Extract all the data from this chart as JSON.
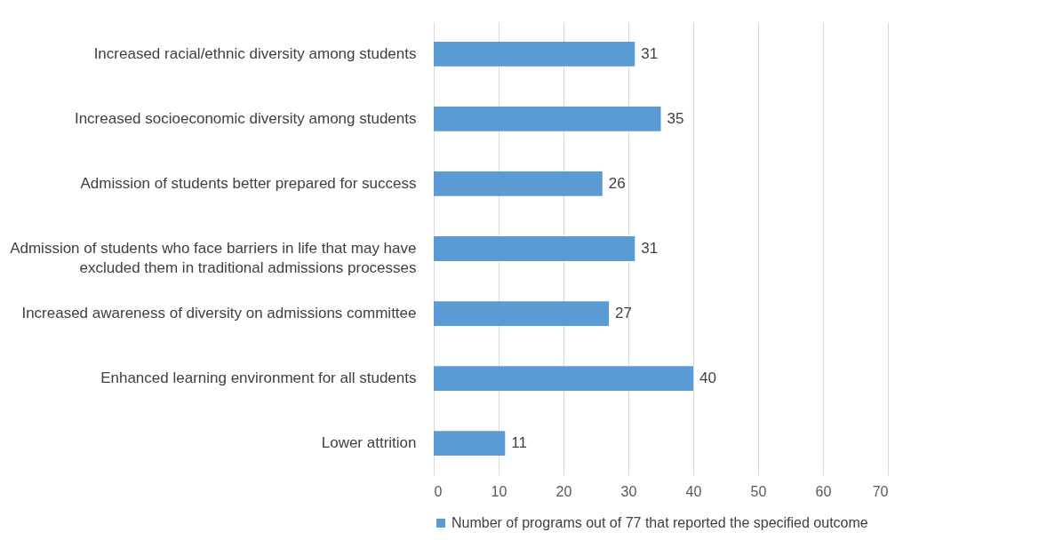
{
  "chart_data": {
    "type": "bar",
    "orientation": "horizontal",
    "categories": [
      "Increased racial/ethnic diversity among students",
      "Increased socioeconomic diversity among students",
      "Admission of students better prepared for success",
      "Admission of students who face barriers in life that may have excluded them in traditional admissions processes",
      "Increased awareness of diversity on admissions committee",
      "Enhanced learning environment for all students",
      "Lower attrition"
    ],
    "series": [
      {
        "name": "Number of programs out of 77 that reported the specified outcome",
        "color": "#5b9bd5",
        "values": [
          31,
          35,
          26,
          31,
          27,
          40,
          11
        ]
      }
    ],
    "xlim": [
      0,
      70
    ],
    "xticks": [
      0,
      10,
      20,
      30,
      40,
      50,
      60,
      70
    ],
    "grid": "x",
    "legend": "bottom",
    "data_labels": true
  }
}
